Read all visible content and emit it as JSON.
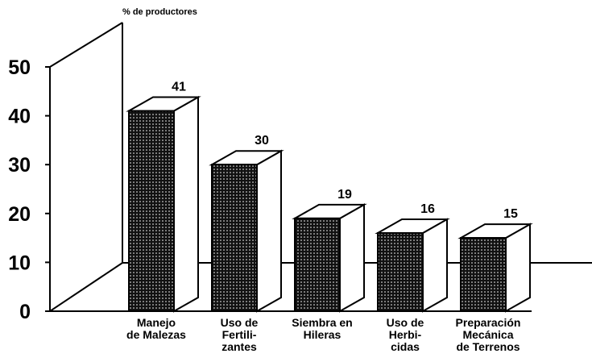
{
  "chart_data": {
    "type": "bar3d",
    "y_axis_label": "% de productores",
    "categories": [
      "Manejo\nde Malezas",
      "Uso de\nFertili-\nzantes",
      "Siembra en\nHileras",
      "Uso de\nHerbi-\ncidas",
      "Preparación\nMecánica\nde Terrenos"
    ],
    "values": [
      41,
      30,
      19,
      16,
      15
    ],
    "color": "#000000",
    "ylim": [
      0,
      50
    ],
    "yticks": [
      0,
      10,
      20,
      30,
      40,
      50
    ],
    "grid": false
  }
}
